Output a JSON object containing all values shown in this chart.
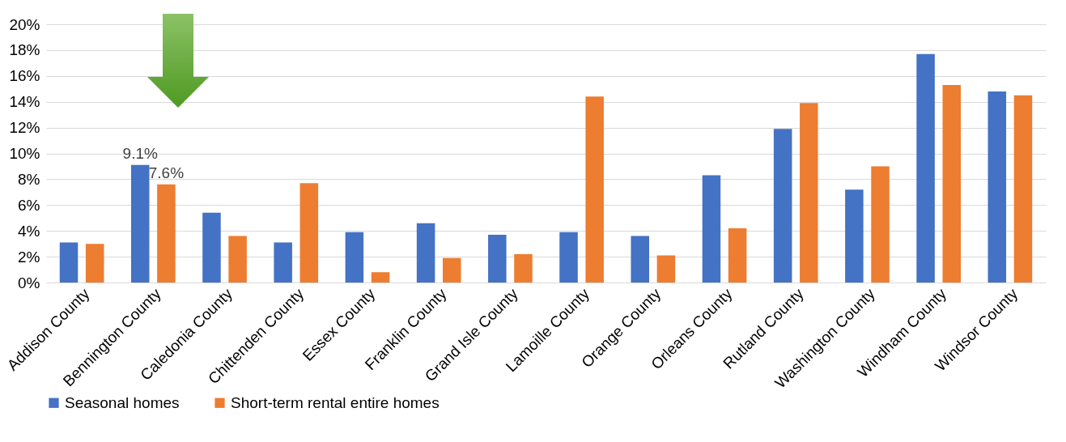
{
  "chart_data": {
    "type": "bar",
    "categories": [
      "Addison County",
      "Bennington County",
      "Caledonia County",
      "Chittenden County",
      "Essex County",
      "Franklin County",
      "Grand Isle County",
      "Lamoille County",
      "Orange County",
      "Orleans County",
      "Rutland County",
      "Washington County",
      "Windham County",
      "Windsor County"
    ],
    "series": [
      {
        "name": "Seasonal homes",
        "color": "#4472c4",
        "values": [
          3.1,
          9.1,
          5.4,
          3.1,
          3.9,
          4.6,
          3.7,
          3.9,
          3.6,
          8.3,
          11.9,
          7.2,
          17.7,
          14.8
        ],
        "value_labels": [
          null,
          "9.1%",
          null,
          null,
          null,
          null,
          null,
          null,
          null,
          null,
          null,
          null,
          null,
          null
        ]
      },
      {
        "name": "Short-term rental entire homes",
        "color": "#ed7d31",
        "values": [
          3.0,
          7.6,
          3.6,
          7.7,
          0.8,
          1.9,
          2.2,
          14.4,
          2.1,
          4.2,
          13.9,
          9.0,
          15.3,
          14.5
        ],
        "value_labels": [
          null,
          "7.6%",
          null,
          null,
          null,
          null,
          null,
          null,
          null,
          null,
          null,
          null,
          null,
          null
        ]
      }
    ],
    "ylim": [
      0,
      20
    ],
    "yticks": [
      {
        "value": 0,
        "label": "0%"
      },
      {
        "value": 2,
        "label": "2%"
      },
      {
        "value": 4,
        "label": "4%"
      },
      {
        "value": 6,
        "label": "6%"
      },
      {
        "value": 8,
        "label": "8%"
      },
      {
        "value": 10,
        "label": "10%"
      },
      {
        "value": 12,
        "label": "12%"
      },
      {
        "value": 14,
        "label": "14%"
      },
      {
        "value": 16,
        "label": "16%"
      },
      {
        "value": 18,
        "label": "18%"
      },
      {
        "value": 20,
        "label": "20%"
      }
    ],
    "grid": "y",
    "legend": "bottom"
  }
}
